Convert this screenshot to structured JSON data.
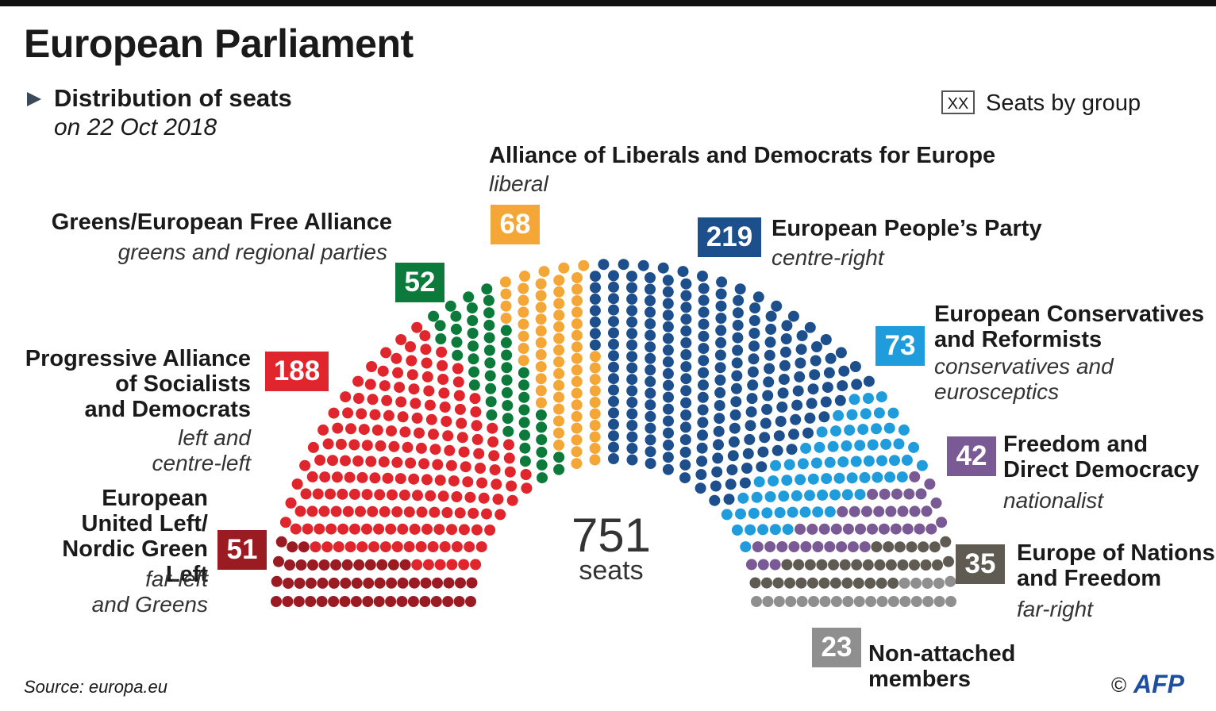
{
  "header": {
    "title": "European Parliament",
    "subtitle": "Distribution of seats",
    "date": "on 22 Oct 2018"
  },
  "legend": {
    "box": "XX",
    "text": "Seats by group"
  },
  "total": {
    "value": "751",
    "label": "seats"
  },
  "source": "Source: europa.eu",
  "credit": {
    "copyright": "©",
    "agency": "AFP"
  },
  "chart_data": {
    "type": "hemicycle",
    "title": "European Parliament",
    "subtitle": "Distribution of seats on 22 Oct 2018",
    "total": 751,
    "groups": [
      {
        "name": "European United Left/ Nordic Green Left",
        "desc": "far-left and Greens",
        "seats": 51,
        "color": "#9b1b23"
      },
      {
        "name": "Progressive Alliance of Socialists and Democrats",
        "desc": "left and centre-left",
        "seats": 188,
        "color": "#e0252c"
      },
      {
        "name": "Greens/European Free Alliance",
        "desc": "greens and regional parties",
        "seats": 52,
        "color": "#0b7a3b"
      },
      {
        "name": "Alliance of Liberals and Democrats for Europe",
        "desc": "liberal",
        "seats": 68,
        "color": "#f4a637"
      },
      {
        "name": "European People’s Party",
        "desc": "centre-right",
        "seats": 219,
        "color": "#1d4f8c"
      },
      {
        "name": "European Conservatives and Reformists",
        "desc": "conservatives and eurosceptics",
        "seats": 73,
        "color": "#1e9cdc"
      },
      {
        "name": "Freedom and Direct Democracy",
        "desc": "nationalist",
        "seats": 42,
        "color": "#7a5a95"
      },
      {
        "name": "Europe of Nations and Freedom",
        "desc": "far-right",
        "seats": 35,
        "color": "#5f5a52"
      },
      {
        "name": "Non-attached members",
        "desc": "",
        "seats": 23,
        "color": "#8f8f8f"
      }
    ]
  },
  "labels": {
    "gue": {
      "name1": "European",
      "name2": "United Left/",
      "name3": "Nordic Green Left",
      "desc1": "far-left",
      "desc2": "and Greens",
      "seats": "51"
    },
    "sd": {
      "name1": "Progressive Alliance",
      "name2": "of Socialists",
      "name3": "and Democrats",
      "desc1": "left and",
      "desc2": "centre-left",
      "seats": "188"
    },
    "greens": {
      "name": "Greens/European Free Alliance",
      "desc": "greens and regional parties",
      "seats": "52"
    },
    "alde": {
      "name": "Alliance of Liberals and Democrats for Europe",
      "desc": "liberal",
      "seats": "68"
    },
    "epp": {
      "name": "European People’s Party",
      "desc": "centre-right",
      "seats": "219"
    },
    "ecr": {
      "name1": "European Conservatives",
      "name2": "and Reformists",
      "desc1": "conservatives and",
      "desc2": "eurosceptics",
      "seats": "73"
    },
    "efdd": {
      "name1": "Freedom and",
      "name2": "Direct Democracy",
      "desc": "nationalist",
      "seats": "42"
    },
    "enf": {
      "name1": "Europe of Nations",
      "name2": "and Freedom",
      "desc": "far-right",
      "seats": "35"
    },
    "ni": {
      "name1": "Non-attached",
      "name2": "members",
      "seats": "23"
    }
  }
}
